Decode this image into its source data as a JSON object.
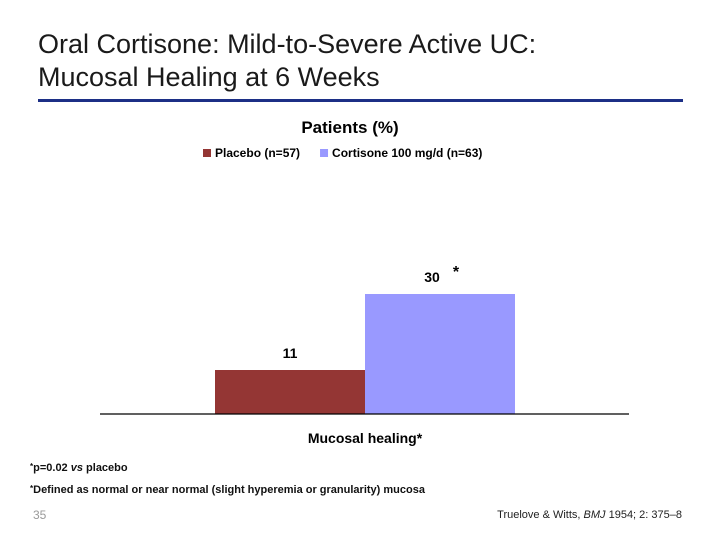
{
  "slide": {
    "title_line1": "Oral Cortisone: Mild-to-Severe Active UC:",
    "title_line2": "Mucosal Healing at 6 Weeks",
    "page_number": "35"
  },
  "footnotes": {
    "fn1_star": "*",
    "fn1_text_a": "p=0.02 ",
    "fn1_text_vs": "vs",
    "fn1_text_b": " placebo",
    "fn2_star": "*",
    "fn2_text": "Defined as normal or near normal (slight hyperemia or granularity) mucosa"
  },
  "citation": {
    "authors": "Truelove & Witts, ",
    "journal": "BMJ",
    "ref": " 1954; 2: 375–8"
  },
  "colors": {
    "title_rule": "#1c2f86",
    "placebo": "#943634",
    "cortisone": "#9999ff"
  },
  "chart_data": {
    "type": "bar",
    "title": "Patients (%)",
    "xlabel": "Mucosal healing*",
    "ylabel": "",
    "categories": [
      "Mucosal healing*"
    ],
    "series": [
      {
        "name": "Placebo (n=57)",
        "values": [
          11
        ],
        "color": "#943634",
        "label": "11"
      },
      {
        "name": "Cortisone 100 mg/d (n=63)",
        "values": [
          30
        ],
        "color": "#9999ff",
        "label": "30",
        "annotation": "*"
      }
    ],
    "ylim": [
      0,
      50
    ],
    "grid": false,
    "legend_position": "top"
  }
}
